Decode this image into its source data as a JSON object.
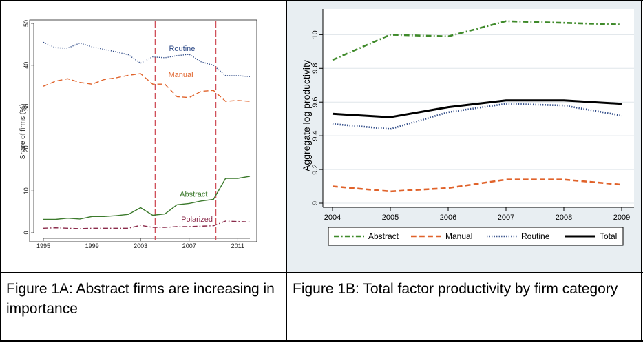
{
  "captions": {
    "left": "Figure 1A: Abstract firms are increasing in importance",
    "right": "Figure 1B: Total factor productivity by firm category"
  },
  "chart_data": [
    {
      "type": "line",
      "title": "",
      "xlabel": "",
      "ylabel": "Share of firms (%)",
      "xlim": [
        1995,
        2012
      ],
      "ylim": [
        0,
        50
      ],
      "x_ticks": [
        "1995",
        "1999",
        "2003",
        "2007",
        "2011"
      ],
      "x_tick_values": [
        1995,
        1999,
        2003,
        2007,
        2011
      ],
      "y_ticks": [
        "0",
        "10",
        "20",
        "30",
        "40",
        "50"
      ],
      "y_tick_values": [
        0,
        10,
        20,
        30,
        40,
        50
      ],
      "grid": false,
      "vertical_reference_lines": [
        2004.2,
        2009.2
      ],
      "vertical_reference_color": "#d0505a",
      "x": [
        1995,
        1996,
        1997,
        1998,
        1999,
        2000,
        2001,
        2002,
        2003,
        2004,
        2005,
        2006,
        2007,
        2008,
        2009,
        2010,
        2011,
        2012
      ],
      "series": [
        {
          "name": "Routine",
          "color": "#2e4a87",
          "dash": "dotted",
          "values": [
            45.5,
            44.2,
            44.1,
            45.3,
            44.4,
            43.8,
            43.2,
            42.5,
            40.5,
            42.0,
            41.8,
            42.3,
            42.6,
            40.8,
            40.0,
            37.5,
            37.5,
            37.3
          ]
        },
        {
          "name": "Manual",
          "color": "#e0622a",
          "dash": "dashed",
          "values": [
            35.0,
            36.2,
            36.8,
            35.9,
            35.5,
            36.6,
            37.0,
            37.6,
            38.0,
            35.5,
            35.5,
            32.5,
            32.3,
            33.8,
            34.0,
            31.4,
            31.6,
            31.4
          ]
        },
        {
          "name": "Abstract",
          "color": "#3c7a2c",
          "dash": "solid",
          "values": [
            3.2,
            3.2,
            3.5,
            3.3,
            3.9,
            3.9,
            4.1,
            4.4,
            6.0,
            4.2,
            4.5,
            6.7,
            7.0,
            7.6,
            8.0,
            13.0,
            13.0,
            13.5
          ]
        },
        {
          "name": "Polarized",
          "color": "#8a2a4a",
          "dash": "dashdot",
          "values": [
            1.1,
            1.2,
            1.1,
            1.0,
            1.1,
            1.1,
            1.1,
            1.1,
            1.8,
            1.3,
            1.3,
            1.5,
            1.5,
            1.6,
            1.7,
            2.8,
            2.7,
            2.6
          ]
        }
      ]
    },
    {
      "type": "line",
      "title": "",
      "xlabel": "",
      "ylabel": "Aggregate log productivity",
      "xlim": [
        2004,
        2009
      ],
      "ylim": [
        9.0,
        10.12
      ],
      "x_ticks": [
        "2004",
        "2005",
        "2006",
        "2007",
        "2008",
        "2009"
      ],
      "x_tick_values": [
        2004,
        2005,
        2006,
        2007,
        2008,
        2009
      ],
      "y_ticks": [
        "9",
        "9.2",
        "9.4",
        "9.6",
        "9.8",
        "10"
      ],
      "y_tick_values": [
        9.0,
        9.2,
        9.4,
        9.6,
        9.8,
        10.0
      ],
      "grid": true,
      "legend_position": "bottom",
      "x": [
        2004,
        2005,
        2006,
        2007,
        2008,
        2009
      ],
      "series": [
        {
          "name": "Abstract",
          "color": "#3f8a2a",
          "dash": "dashdot",
          "values": [
            9.85,
            10.0,
            9.99,
            10.08,
            10.07,
            10.06
          ]
        },
        {
          "name": "Manual",
          "color": "#e0622a",
          "dash": "dashed",
          "values": [
            9.1,
            9.07,
            9.09,
            9.14,
            9.14,
            9.11
          ]
        },
        {
          "name": "Routine",
          "color": "#2e4a87",
          "dash": "dotted",
          "values": [
            9.47,
            9.44,
            9.54,
            9.59,
            9.58,
            9.52
          ]
        },
        {
          "name": "Total",
          "color": "#000000",
          "dash": "solid",
          "values": [
            9.53,
            9.51,
            9.57,
            9.61,
            9.61,
            9.59
          ]
        }
      ]
    }
  ]
}
